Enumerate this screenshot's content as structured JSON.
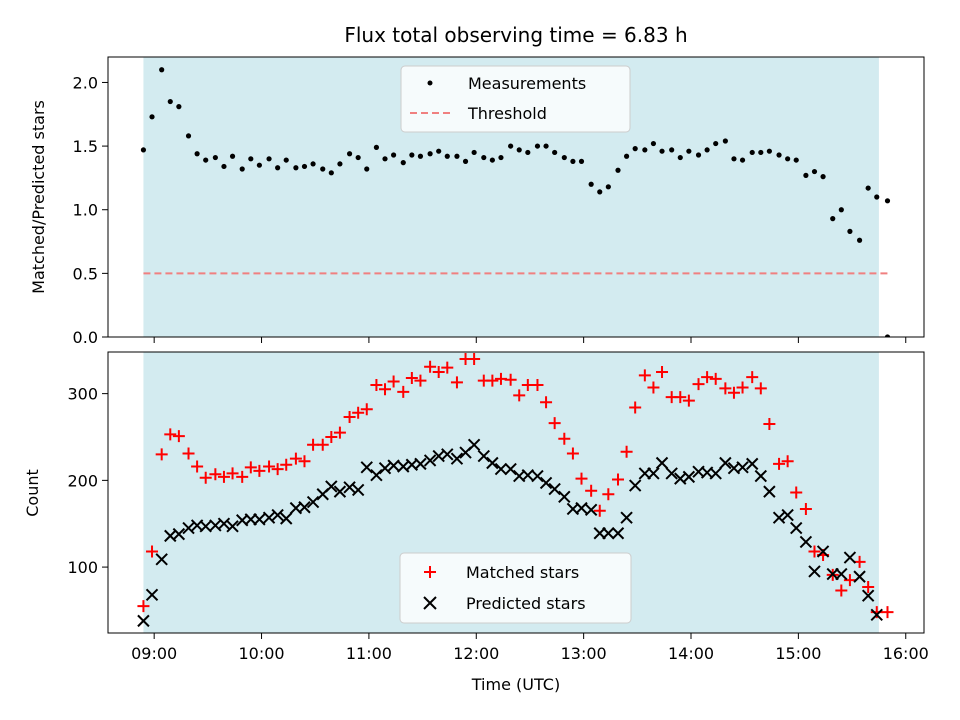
{
  "chart_data": [
    {
      "type": "scatter",
      "title": "Flux total observing time = 6.83 h",
      "xlabel": "",
      "ylabel": "Matched/Predicted stars",
      "xlim": [
        8.57,
        16.17
      ],
      "ylim": [
        0.0,
        2.2
      ],
      "yticks": [
        0.0,
        0.5,
        1.0,
        1.5,
        2.0
      ],
      "ytick_labels": [
        "0.0",
        "0.5",
        "1.0",
        "1.5",
        "2.0"
      ],
      "observing_window": [
        8.9,
        15.75
      ],
      "band_color": "#d3ebf0",
      "threshold": {
        "name": "Threshold",
        "value": 0.5,
        "x_range": [
          8.9,
          15.83
        ],
        "color": "#f08080"
      },
      "legend": {
        "position": "upper center",
        "entries": [
          "Measurements",
          "Threshold"
        ]
      },
      "series": [
        {
          "name": "Measurements",
          "marker": "dot",
          "color": "#000000",
          "x": [
            8.9,
            8.98,
            9.07,
            9.15,
            9.23,
            9.32,
            9.4,
            9.48,
            9.57,
            9.65,
            9.73,
            9.82,
            9.9,
            9.98,
            10.07,
            10.15,
            10.23,
            10.32,
            10.4,
            10.48,
            10.57,
            10.65,
            10.73,
            10.82,
            10.9,
            10.98,
            11.07,
            11.15,
            11.23,
            11.32,
            11.4,
            11.48,
            11.57,
            11.65,
            11.73,
            11.82,
            11.9,
            11.98,
            12.07,
            12.15,
            12.23,
            12.32,
            12.4,
            12.48,
            12.57,
            12.65,
            12.73,
            12.82,
            12.9,
            12.98,
            13.07,
            13.15,
            13.23,
            13.32,
            13.4,
            13.48,
            13.57,
            13.65,
            13.73,
            13.82,
            13.9,
            13.98,
            14.07,
            14.15,
            14.23,
            14.32,
            14.4,
            14.48,
            14.57,
            14.65,
            14.73,
            14.82,
            14.9,
            14.98,
            15.07,
            15.15,
            15.23,
            15.32,
            15.4,
            15.48,
            15.57,
            15.65,
            15.73,
            15.83
          ],
          "y": [
            1.47,
            1.73,
            2.1,
            1.85,
            1.81,
            1.58,
            1.44,
            1.39,
            1.41,
            1.34,
            1.42,
            1.32,
            1.4,
            1.35,
            1.4,
            1.33,
            1.39,
            1.33,
            1.34,
            1.36,
            1.32,
            1.29,
            1.36,
            1.44,
            1.41,
            1.32,
            1.49,
            1.4,
            1.43,
            1.37,
            1.43,
            1.42,
            1.44,
            1.46,
            1.42,
            1.42,
            1.38,
            1.45,
            1.41,
            1.39,
            1.41,
            1.5,
            1.47,
            1.45,
            1.5,
            1.5,
            1.45,
            1.41,
            1.38,
            1.38,
            1.2,
            1.14,
            1.18,
            1.31,
            1.42,
            1.48,
            1.47,
            1.52,
            1.46,
            1.47,
            1.41,
            1.46,
            1.43,
            1.47,
            1.52,
            1.54,
            1.4,
            1.39,
            1.45,
            1.45,
            1.46,
            1.43,
            1.4,
            1.39,
            1.27,
            1.3,
            1.26,
            0.93,
            1.0,
            0.83,
            0.76,
            1.17,
            1.1,
            1.07
          ]
        }
      ]
    },
    {
      "type": "scatter",
      "title": "",
      "xlabel": "Time (UTC)",
      "ylabel": "Count",
      "xlim": [
        8.57,
        16.17
      ],
      "ylim": [
        24,
        348
      ],
      "xticks": [
        9,
        10,
        11,
        12,
        13,
        14,
        15,
        16
      ],
      "xtick_labels": [
        "09:00",
        "10:00",
        "11:00",
        "12:00",
        "13:00",
        "14:00",
        "15:00",
        "16:00"
      ],
      "yticks": [
        100,
        200,
        300
      ],
      "ytick_labels": [
        "100",
        "200",
        "300"
      ],
      "observing_window": [
        8.9,
        15.75
      ],
      "band_color": "#d3ebf0",
      "legend": {
        "position": "lower center",
        "entries": [
          "Matched stars",
          "Predicted stars"
        ]
      },
      "series": [
        {
          "name": "Matched stars",
          "marker": "plus",
          "color": "#ff0000",
          "x": [
            8.9,
            8.98,
            9.07,
            9.15,
            9.23,
            9.32,
            9.4,
            9.48,
            9.57,
            9.65,
            9.73,
            9.82,
            9.9,
            9.98,
            10.07,
            10.15,
            10.23,
            10.32,
            10.4,
            10.48,
            10.57,
            10.65,
            10.73,
            10.82,
            10.9,
            10.98,
            11.07,
            11.15,
            11.23,
            11.32,
            11.4,
            11.48,
            11.57,
            11.65,
            11.73,
            11.82,
            11.9,
            11.98,
            12.07,
            12.15,
            12.23,
            12.32,
            12.4,
            12.48,
            12.57,
            12.65,
            12.73,
            12.82,
            12.9,
            12.98,
            13.07,
            13.15,
            13.23,
            13.32,
            13.4,
            13.48,
            13.57,
            13.65,
            13.73,
            13.82,
            13.9,
            13.98,
            14.07,
            14.15,
            14.23,
            14.32,
            14.4,
            14.48,
            14.57,
            14.65,
            14.73,
            14.82,
            14.9,
            14.98,
            15.07,
            15.15,
            15.23,
            15.32,
            15.4,
            15.48,
            15.57,
            15.65,
            15.73,
            15.83
          ],
          "y": [
            55,
            118,
            230,
            253,
            251,
            231,
            216,
            203,
            207,
            204,
            208,
            204,
            215,
            211,
            216,
            213,
            218,
            225,
            222,
            241,
            241,
            250,
            255,
            273,
            278,
            282,
            310,
            305,
            314,
            302,
            318,
            315,
            331,
            325,
            330,
            313,
            340,
            340,
            315,
            315,
            317,
            316,
            298,
            310,
            310,
            290,
            266,
            248,
            231,
            202,
            188,
            165,
            184,
            201,
            233,
            284,
            321,
            307,
            325,
            296,
            296,
            292,
            311,
            319,
            317,
            306,
            301,
            307,
            319,
            306,
            265,
            219,
            222,
            186,
            167,
            118,
            114,
            91,
            73,
            85,
            106,
            77,
            48,
            48
          ]
        },
        {
          "name": "Predicted stars",
          "marker": "x",
          "color": "#000000",
          "x": [
            8.9,
            8.98,
            9.07,
            9.15,
            9.23,
            9.32,
            9.4,
            9.48,
            9.57,
            9.65,
            9.73,
            9.82,
            9.9,
            9.98,
            10.07,
            10.15,
            10.23,
            10.32,
            10.4,
            10.48,
            10.57,
            10.65,
            10.73,
            10.82,
            10.9,
            10.98,
            11.07,
            11.15,
            11.23,
            11.32,
            11.4,
            11.48,
            11.57,
            11.65,
            11.73,
            11.82,
            11.9,
            11.98,
            12.07,
            12.15,
            12.23,
            12.32,
            12.4,
            12.48,
            12.57,
            12.65,
            12.73,
            12.82,
            12.9,
            12.98,
            13.07,
            13.15,
            13.23,
            13.32,
            13.4,
            13.48,
            13.57,
            13.65,
            13.73,
            13.82,
            13.9,
            13.98,
            14.07,
            14.15,
            14.23,
            14.32,
            14.4,
            14.48,
            14.57,
            14.65,
            14.73,
            14.82,
            14.9,
            14.98,
            15.07,
            15.15,
            15.23,
            15.32,
            15.4,
            15.48,
            15.57,
            15.65,
            15.73
          ],
          "y": [
            38,
            68,
            109,
            136,
            138,
            145,
            148,
            147,
            148,
            150,
            147,
            154,
            155,
            155,
            157,
            160,
            156,
            168,
            169,
            175,
            184,
            193,
            187,
            192,
            189,
            215,
            206,
            214,
            217,
            216,
            218,
            219,
            223,
            228,
            230,
            225,
            232,
            241,
            228,
            220,
            213,
            213,
            205,
            206,
            205,
            197,
            190,
            181,
            167,
            168,
            166,
            139,
            139,
            139,
            157,
            194,
            208,
            208,
            220,
            208,
            202,
            204,
            210,
            209,
            208,
            220,
            214,
            215,
            219,
            205,
            187,
            157,
            160,
            145,
            129,
            95,
            118,
            92,
            92,
            111,
            89,
            67,
            45
          ]
        }
      ]
    }
  ]
}
